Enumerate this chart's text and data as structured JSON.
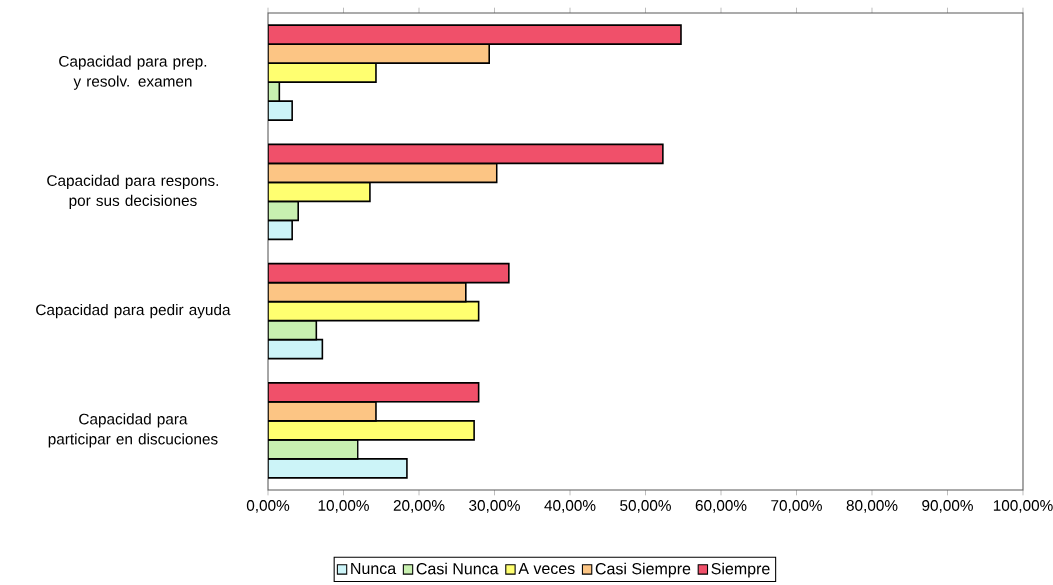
{
  "chart_data": {
    "type": "bar",
    "orientation": "horizontal",
    "categories": [
      "Capacidad para prep. y resolv. examen",
      "Capacidad para respons. por sus decisiones",
      "Capacidad para pedir ayuda",
      "Capacidad para participar en discuciones"
    ],
    "series": [
      {
        "name": "Nunca",
        "color": "#ccf4f8",
        "values": [
          3.2,
          3.2,
          7.2,
          18.4
        ]
      },
      {
        "name": "Casi Nunca",
        "color": "#c8f0b0",
        "values": [
          1.5,
          4.0,
          6.4,
          11.9
        ]
      },
      {
        "name": "A veces",
        "color": "#ffff70",
        "values": [
          14.3,
          13.5,
          27.9,
          27.3
        ]
      },
      {
        "name": "Casi Siempre",
        "color": "#fcc584",
        "values": [
          29.3,
          30.3,
          26.2,
          14.3
        ]
      },
      {
        "name": "Siempre",
        "color": "#f0506a",
        "values": [
          54.7,
          52.3,
          31.9,
          27.9
        ]
      }
    ],
    "xlim": [
      0,
      100
    ],
    "xticks": [
      {
        "value": 0,
        "label": "0,00%"
      },
      {
        "value": 10,
        "label": "10,00%"
      },
      {
        "value": 20,
        "label": "20,00%"
      },
      {
        "value": 30,
        "label": "30,00%"
      },
      {
        "value": 40,
        "label": "40,00%"
      },
      {
        "value": 50,
        "label": "50,00%"
      },
      {
        "value": 60,
        "label": "60,00%"
      },
      {
        "value": 70,
        "label": "70,00%"
      },
      {
        "value": 80,
        "label": "80,00%"
      },
      {
        "value": 90,
        "label": "90,00%"
      },
      {
        "value": 100,
        "label": "100,00%"
      }
    ],
    "legend": "bottom"
  }
}
